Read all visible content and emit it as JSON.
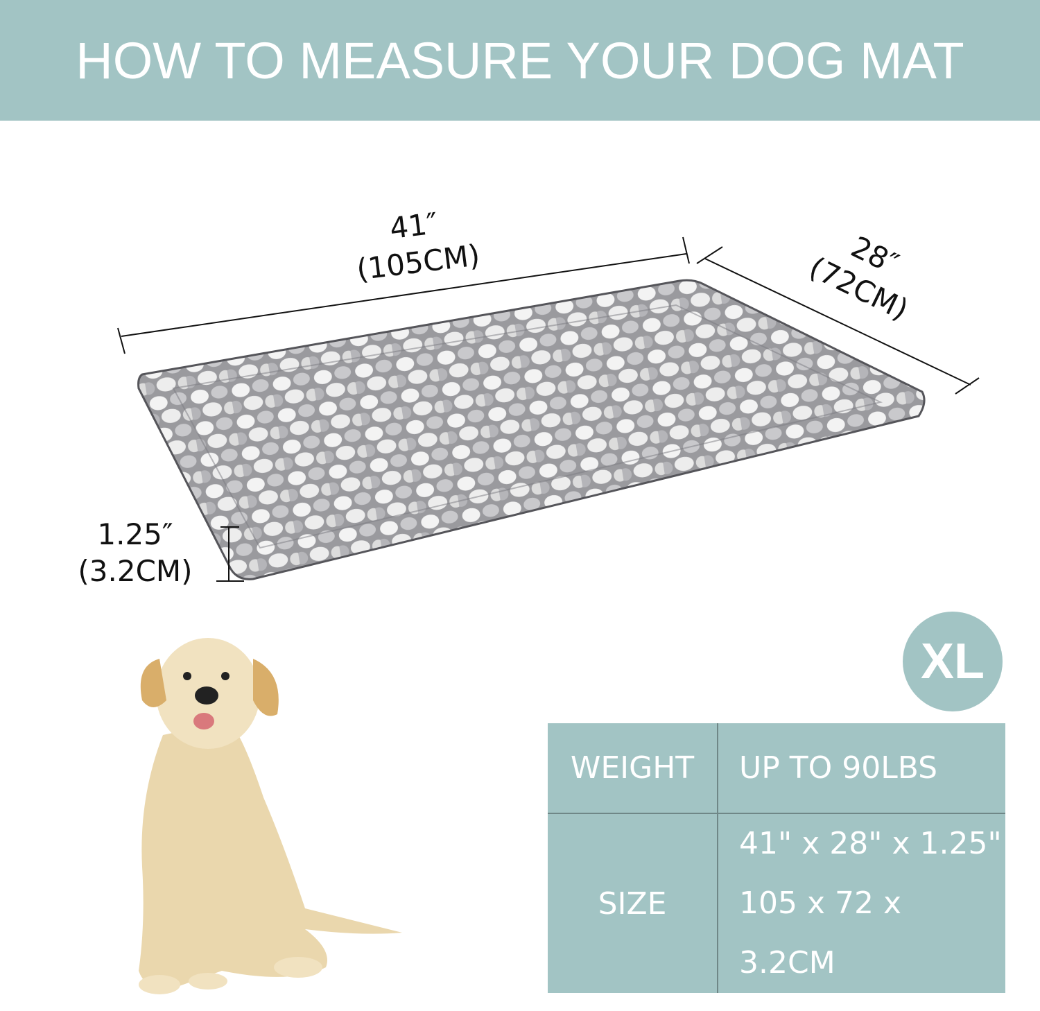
{
  "header": {
    "title": "HOW TO MEASURE YOUR DOG MAT"
  },
  "dimensions": {
    "length_in": "41″",
    "length_cm": "(105CM)",
    "width_in": "28″",
    "width_cm": "(72CM)",
    "thickness_in": "1.25″",
    "thickness_cm": "(3.2CM)"
  },
  "size_badge": "XL",
  "spec_table": {
    "rows": [
      {
        "label": "WEIGHT",
        "values": [
          "UP TO 90LBS"
        ]
      },
      {
        "label": "SIZE",
        "values": [
          "41\" x 28\" x 1.25\"",
          "105 x 72 x 3.2CM"
        ]
      }
    ]
  },
  "colors": {
    "accent": "#a2c4c4",
    "mat_light": "#f2f2f2",
    "mat_dark": "#8a8a8e",
    "dog": "#e8d3a6"
  }
}
